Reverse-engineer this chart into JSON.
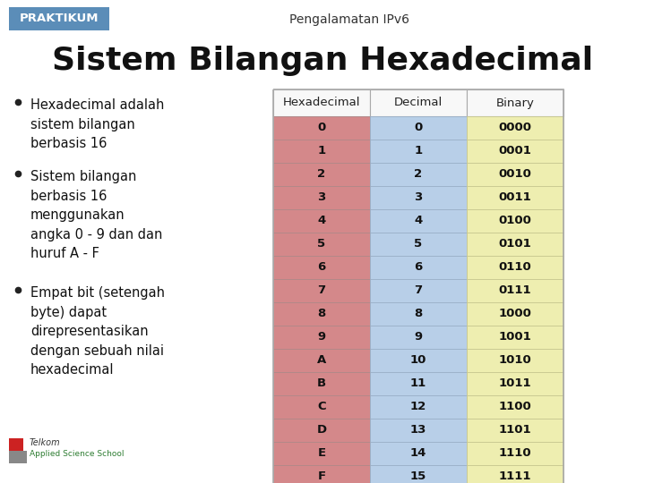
{
  "background_color": "#ffffff",
  "praktikum_label": "PRAKTIKUM",
  "praktikum_bg": "#5b8db8",
  "subtitle": "Pengalamatan IPv6",
  "title": "Sistem Bilangan Hexadecimal",
  "bullets": [
    "Hexadecimal adalah\nsistem bilangan\nberbasis 16",
    "Sistem bilangan\nberbasis 16\nmenggunakan\nangka 0 - 9 dan dan\nhuruf A - F",
    "Empat bit (setengah\nbyte) dapat\ndirepresentasikan\ndengan sebuah nilai\nhexadecimal"
  ],
  "table_headers": [
    "Hexadecimal",
    "Decimal",
    "Binary"
  ],
  "hex_col": [
    "0",
    "1",
    "2",
    "3",
    "4",
    "5",
    "6",
    "7",
    "8",
    "9",
    "A",
    "B",
    "C",
    "D",
    "E",
    "F"
  ],
  "dec_col": [
    "0",
    "1",
    "2",
    "3",
    "4",
    "5",
    "6",
    "7",
    "8",
    "9",
    "10",
    "11",
    "12",
    "13",
    "14",
    "15"
  ],
  "bin_col": [
    "0000",
    "0001",
    "0010",
    "0011",
    "0100",
    "0101",
    "0110",
    "0111",
    "1000",
    "1001",
    "1010",
    "1011",
    "1100",
    "1101",
    "1110",
    "1111"
  ],
  "hex_col_color": "#d4888a",
  "dec_col_color": "#b8cfe8",
  "bin_col_color": "#eeeeb0",
  "header_bg": "#f8f8f8",
  "row_line_color": "#b08888",
  "dec_line_color": "#9ab0c8",
  "bin_line_color": "#c8c890",
  "table_border_color": "#aaaaaa",
  "title_fontsize": 26,
  "subtitle_fontsize": 10,
  "bullet_fontsize": 10.5,
  "table_fontsize": 9.5
}
